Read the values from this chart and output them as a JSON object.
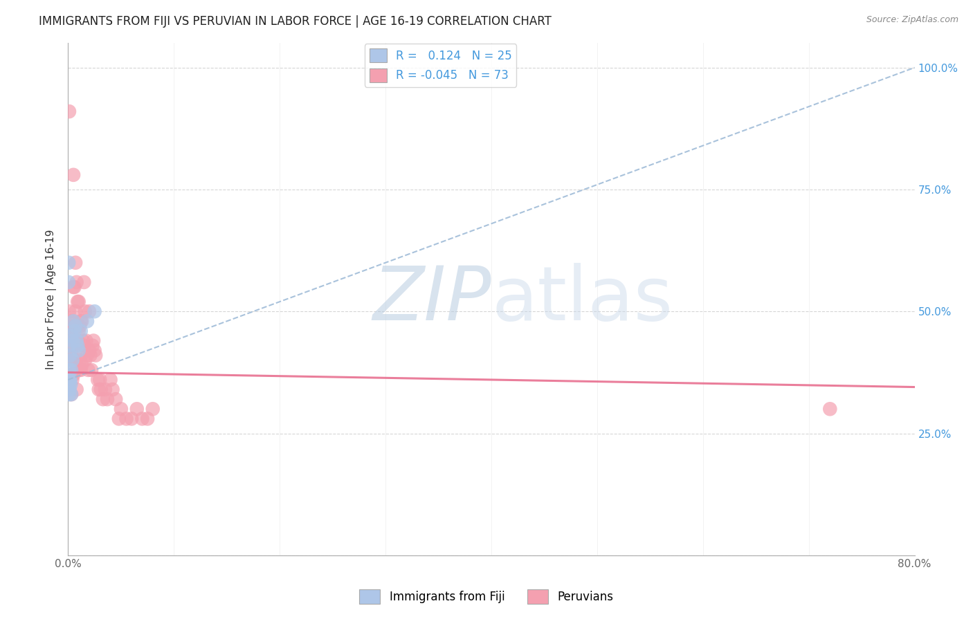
{
  "title": "IMMIGRANTS FROM FIJI VS PERUVIAN IN LABOR FORCE | AGE 16-19 CORRELATION CHART",
  "source": "Source: ZipAtlas.com",
  "ylabel": "In Labor Force | Age 16-19",
  "xmin": 0.0,
  "xmax": 0.8,
  "ymin": 0.0,
  "ymax": 1.05,
  "yticks": [
    0.0,
    0.25,
    0.5,
    0.75,
    1.0
  ],
  "fiji_R": 0.124,
  "fiji_N": 25,
  "peru_R": -0.045,
  "peru_N": 73,
  "fiji_color": "#aec6e8",
  "peru_color": "#f4a0b0",
  "fiji_trend_color": "#a0bcd8",
  "peru_trend_color": "#e87090",
  "grid_color": "#cccccc",
  "title_color": "#222222",
  "right_tick_color": "#4499dd",
  "fiji_x": [
    0.0003,
    0.0005,
    0.0006,
    0.0008,
    0.001,
    0.001,
    0.0012,
    0.0015,
    0.002,
    0.002,
    0.0025,
    0.003,
    0.003,
    0.003,
    0.004,
    0.004,
    0.005,
    0.006,
    0.007,
    0.008,
    0.009,
    0.01,
    0.012,
    0.018,
    0.025
  ],
  "fiji_y": [
    0.56,
    0.6,
    0.35,
    0.33,
    0.43,
    0.38,
    0.36,
    0.34,
    0.41,
    0.36,
    0.35,
    0.45,
    0.38,
    0.33,
    0.44,
    0.4,
    0.48,
    0.46,
    0.47,
    0.44,
    0.43,
    0.42,
    0.46,
    0.48,
    0.5
  ],
  "peru_x": [
    0.001,
    0.001,
    0.002,
    0.002,
    0.002,
    0.003,
    0.003,
    0.003,
    0.003,
    0.004,
    0.004,
    0.004,
    0.005,
    0.005,
    0.005,
    0.005,
    0.006,
    0.006,
    0.006,
    0.007,
    0.007,
    0.007,
    0.008,
    0.008,
    0.008,
    0.009,
    0.009,
    0.01,
    0.01,
    0.01,
    0.011,
    0.011,
    0.012,
    0.012,
    0.013,
    0.013,
    0.014,
    0.015,
    0.015,
    0.016,
    0.016,
    0.017,
    0.018,
    0.019,
    0.02,
    0.02,
    0.021,
    0.022,
    0.023,
    0.024,
    0.025,
    0.026,
    0.028,
    0.029,
    0.03,
    0.031,
    0.033,
    0.035,
    0.037,
    0.04,
    0.042,
    0.045,
    0.048,
    0.05,
    0.055,
    0.06,
    0.065,
    0.07,
    0.075,
    0.08,
    0.005,
    0.008,
    0.72
  ],
  "peru_y": [
    0.91,
    0.5,
    0.48,
    0.44,
    0.37,
    0.46,
    0.42,
    0.37,
    0.33,
    0.46,
    0.4,
    0.36,
    0.55,
    0.48,
    0.44,
    0.37,
    0.55,
    0.47,
    0.4,
    0.6,
    0.5,
    0.42,
    0.56,
    0.47,
    0.39,
    0.52,
    0.44,
    0.52,
    0.46,
    0.38,
    0.47,
    0.4,
    0.48,
    0.38,
    0.48,
    0.39,
    0.44,
    0.56,
    0.43,
    0.5,
    0.4,
    0.44,
    0.41,
    0.38,
    0.5,
    0.42,
    0.41,
    0.38,
    0.43,
    0.44,
    0.42,
    0.41,
    0.36,
    0.34,
    0.36,
    0.34,
    0.32,
    0.34,
    0.32,
    0.36,
    0.34,
    0.32,
    0.28,
    0.3,
    0.28,
    0.28,
    0.3,
    0.28,
    0.28,
    0.3,
    0.78,
    0.34,
    0.3
  ],
  "fiji_trend_y0": 0.36,
  "fiji_trend_y1": 1.0,
  "peru_trend_y0": 0.375,
  "peru_trend_y1": 0.345
}
